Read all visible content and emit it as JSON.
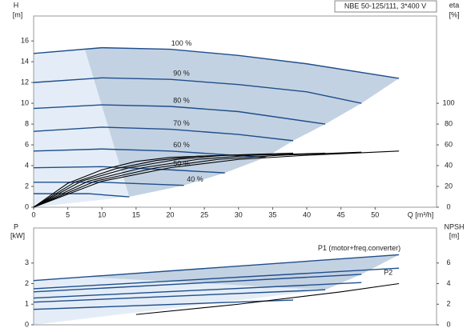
{
  "chart_data": [
    {
      "type": "line",
      "title": "NBE 50-125/111, 3*400 V",
      "ylabel": "H",
      "yunit": "[m]",
      "y2label": "eta",
      "y2unit": "[%]",
      "xlabel": "Q [m³/h]",
      "xlim": [
        0,
        59
      ],
      "xticks": [
        0,
        5,
        10,
        15,
        20,
        25,
        30,
        35,
        40,
        45,
        50
      ],
      "ylim": [
        0,
        18.4
      ],
      "yticks": [
        0,
        2,
        4,
        6,
        8,
        10,
        12,
        14,
        16
      ],
      "y2lim": [
        0,
        184
      ],
      "y2ticks": [
        0,
        20,
        40,
        60,
        80,
        100
      ],
      "series": [
        {
          "name": "100 %",
          "color": "#1f4e8c",
          "x": [
            0,
            10,
            20,
            30,
            40,
            53.5
          ],
          "values": [
            14.8,
            15.35,
            15.2,
            14.6,
            13.8,
            12.4
          ]
        },
        {
          "name": "90 %",
          "color": "#1f4e8c",
          "x": [
            0,
            10,
            20,
            30,
            40,
            48
          ],
          "values": [
            12.0,
            12.45,
            12.3,
            11.8,
            11.1,
            10.0
          ]
        },
        {
          "name": "80 %",
          "color": "#1f4e8c",
          "x": [
            0,
            10,
            20,
            30,
            42.7
          ],
          "values": [
            9.5,
            9.85,
            9.7,
            9.2,
            8.0
          ]
        },
        {
          "name": "70 %",
          "color": "#1f4e8c",
          "x": [
            0,
            10,
            20,
            30,
            38
          ],
          "values": [
            7.3,
            7.7,
            7.5,
            7.0,
            6.4
          ]
        },
        {
          "name": "60 %",
          "color": "#1f4e8c",
          "x": [
            0,
            10,
            20,
            34
          ],
          "values": [
            5.4,
            5.6,
            5.4,
            4.8
          ]
        },
        {
          "name": "50 %",
          "color": "#1f4e8c",
          "x": [
            0,
            10,
            20,
            28
          ],
          "values": [
            3.8,
            3.9,
            3.6,
            3.3
          ]
        },
        {
          "name": "40 %",
          "color": "#1f4e8c",
          "x": [
            0,
            10,
            22
          ],
          "values": [
            2.4,
            2.4,
            2.1
          ]
        },
        {
          "color": "#1f4e8c",
          "x": [
            0,
            8,
            14
          ],
          "values": [
            1.3,
            1.3,
            1.0
          ]
        },
        {
          "color": "#000000",
          "axis": "y2",
          "x": [
            0,
            10,
            20,
            30,
            40,
            53.5
          ],
          "values": [
            0,
            25,
            38,
            46,
            50,
            54
          ]
        },
        {
          "color": "#000000",
          "axis": "y2",
          "x": [
            0,
            9,
            18,
            27,
            36,
            48
          ],
          "values": [
            0,
            25,
            38,
            46,
            50,
            53
          ]
        },
        {
          "color": "#000000",
          "axis": "y2",
          "x": [
            0,
            8,
            16,
            24,
            32,
            42.7
          ],
          "values": [
            0,
            25,
            38,
            46,
            50,
            52
          ]
        },
        {
          "color": "#000000",
          "axis": "y2",
          "x": [
            0,
            7,
            14,
            21,
            28,
            38
          ],
          "values": [
            0,
            25,
            38,
            46,
            50,
            52
          ]
        },
        {
          "color": "#000000",
          "axis": "y2",
          "x": [
            0,
            6,
            12,
            18,
            24,
            34
          ],
          "values": [
            0,
            24,
            37,
            45,
            49,
            51
          ]
        },
        {
          "color": "#000000",
          "axis": "y2",
          "x": [
            0,
            5,
            10,
            15,
            20,
            28
          ],
          "values": [
            0,
            23,
            36,
            44,
            48,
            50
          ]
        }
      ]
    },
    {
      "type": "line",
      "ylabel": "P",
      "yunit": "[kW]",
      "y2label": "NPSH",
      "y2unit": "[m]",
      "xlim": [
        0,
        59
      ],
      "ylim": [
        0,
        4.7
      ],
      "yticks": [
        0,
        1,
        2,
        3
      ],
      "y2lim": [
        0,
        9.4
      ],
      "y2ticks": [
        0,
        2,
        4,
        6
      ],
      "series": [
        {
          "name": "P1 (motor+freq.converter)",
          "color": "#1f4e8c",
          "x": [
            0,
            53.5
          ],
          "values": [
            2.15,
            3.4
          ]
        },
        {
          "name": "P2",
          "color": "#1f4e8c",
          "x": [
            0,
            53.5
          ],
          "values": [
            1.75,
            2.75
          ]
        },
        {
          "color": "#1f4e8c",
          "x": [
            0,
            48
          ],
          "values": [
            1.6,
            2.45
          ]
        },
        {
          "color": "#1f4e8c",
          "x": [
            0,
            48
          ],
          "values": [
            1.3,
            2.05
          ]
        },
        {
          "color": "#1f4e8c",
          "x": [
            0,
            42.7
          ],
          "values": [
            1.1,
            1.7
          ]
        },
        {
          "color": "#1f4e8c",
          "x": [
            0,
            38
          ],
          "values": [
            0.75,
            1.2
          ]
        },
        {
          "color": "#000000",
          "axis": "y2",
          "x": [
            15,
            30,
            45,
            53.5
          ],
          "values": [
            1.0,
            2.0,
            3.2,
            4.0
          ]
        }
      ]
    }
  ]
}
